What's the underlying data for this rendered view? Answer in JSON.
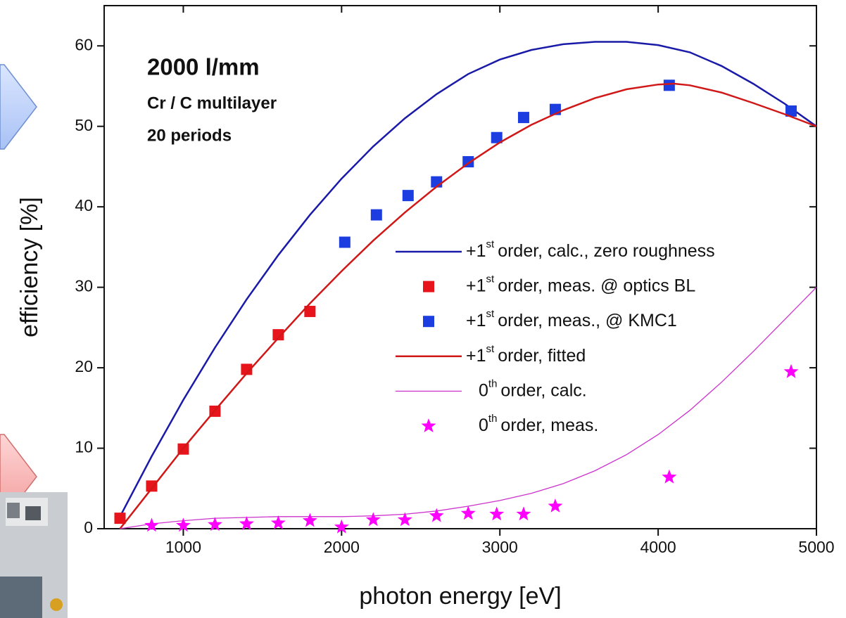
{
  "chart_data": {
    "type": "line",
    "annotations": [
      "2000 l/mm",
      "Cr / C multilayer",
      "20 periods"
    ],
    "xlabel": "photon energy [eV]",
    "ylabel": "efficiency [%]",
    "xlim": [
      500,
      5000
    ],
    "xticks": [
      1000,
      2000,
      3000,
      4000,
      5000
    ],
    "ylim": [
      0,
      65
    ],
    "yticks": [
      0,
      10,
      20,
      30,
      40,
      50,
      60
    ],
    "series": [
      {
        "name": {
          "base": "+1",
          "sup": "st",
          "rest": "order, calc., zero roughness"
        },
        "mode": "line",
        "color": "#1a1aa8",
        "width": 2.5,
        "x": [
          600,
          800,
          1000,
          1200,
          1400,
          1600,
          1800,
          2000,
          2200,
          2400,
          2600,
          2800,
          3000,
          3200,
          3400,
          3600,
          3800,
          4000,
          4200,
          4400,
          4600,
          4800,
          5000
        ],
        "values": [
          1.5,
          9,
          16,
          22.5,
          28.5,
          34,
          39,
          43.5,
          47.5,
          51,
          54,
          56.5,
          58.3,
          59.5,
          60.2,
          60.5,
          60.5,
          60.1,
          59.2,
          57.5,
          55.3,
          52.8,
          50
        ]
      },
      {
        "name": {
          "base": "+1",
          "sup": "st",
          "rest": "order, meas. @ optics BL"
        },
        "mode": "square",
        "color": "#e8141c",
        "x": [
          600,
          800,
          1000,
          1200,
          1400,
          1600,
          1800
        ],
        "values": [
          1.3,
          5.3,
          9.9,
          14.6,
          19.8,
          24.1,
          27
        ]
      },
      {
        "name": {
          "base": "+1",
          "sup": "st",
          "rest": "order, meas., @ KMC1"
        },
        "mode": "square",
        "color": "#1c3de0",
        "x": [
          2020,
          2220,
          2420,
          2600,
          2800,
          2980,
          3150,
          3350,
          4070,
          4840
        ],
        "values": [
          35.6,
          39,
          41.4,
          43.1,
          45.6,
          48.6,
          51.1,
          52.1,
          55.1,
          51.9
        ]
      },
      {
        "name": {
          "base": "+1",
          "sup": "st",
          "rest": "order, fitted"
        },
        "mode": "line",
        "color": "#d01818",
        "width": 2.5,
        "x": [
          600,
          800,
          1000,
          1200,
          1400,
          1600,
          1800,
          2000,
          2200,
          2400,
          2600,
          2800,
          3000,
          3200,
          3400,
          3600,
          3800,
          4000,
          4100,
          4200,
          4400,
          4600,
          4800,
          5000
        ],
        "values": [
          0,
          5,
          10,
          14.7,
          19.3,
          23.7,
          28,
          32,
          35.8,
          39.3,
          42.5,
          45.4,
          48,
          50.2,
          52,
          53.5,
          54.6,
          55.2,
          55.3,
          55.1,
          54.2,
          52.9,
          51.5,
          50
        ]
      },
      {
        "name": {
          "base": "0",
          "sup": "th",
          "rest": "order, calc."
        },
        "mode": "line",
        "color": "#cc33cc",
        "width": 1.3,
        "x": [
          600,
          800,
          1000,
          1200,
          1400,
          1600,
          1800,
          2000,
          2200,
          2400,
          2600,
          2800,
          3000,
          3200,
          3400,
          3600,
          3800,
          4000,
          4200,
          4400,
          4600,
          4800,
          5000
        ],
        "values": [
          0,
          0.6,
          1,
          1.3,
          1.4,
          1.5,
          1.5,
          1.5,
          1.6,
          1.8,
          2.2,
          2.8,
          3.5,
          4.4,
          5.6,
          7.2,
          9.2,
          11.7,
          14.7,
          18.2,
          22,
          26,
          30
        ]
      },
      {
        "name": {
          "base": "0",
          "sup": "th",
          "rest": "order, meas."
        },
        "mode": "star",
        "color": "#ff00ff",
        "x": [
          800,
          1000,
          1200,
          1400,
          1600,
          1800,
          2000,
          2200,
          2400,
          2600,
          2800,
          2980,
          3150,
          3350,
          4070,
          4840
        ],
        "values": [
          0.4,
          0.4,
          0.5,
          0.6,
          0.7,
          1,
          0.2,
          1.1,
          1.1,
          1.6,
          1.9,
          1.8,
          1.8,
          2.8,
          6.4,
          19.5
        ]
      }
    ]
  }
}
